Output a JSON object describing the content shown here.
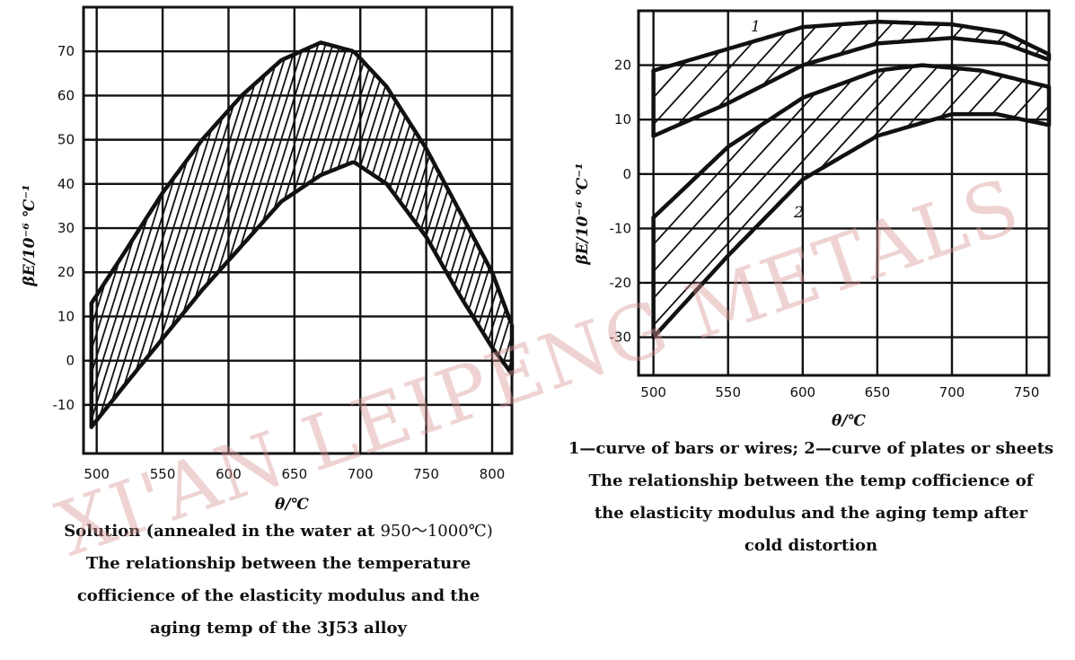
{
  "watermark": "XI'AN LEIPENG METALS",
  "chart_data": [
    {
      "type": "area",
      "xlabel": "θ/℃",
      "ylabel": "βE/10⁻⁶ ℃⁻¹",
      "x_ticks": [
        500,
        550,
        600,
        650,
        700,
        750,
        800
      ],
      "y_ticks": [
        70,
        60,
        50,
        40,
        30,
        20,
        10,
        0,
        -10
      ],
      "xlim": [
        490,
        815
      ],
      "ylim": [
        -21,
        80
      ],
      "band": {
        "upper": [
          [
            496,
            13
          ],
          [
            520,
            24
          ],
          [
            550,
            38
          ],
          [
            580,
            50
          ],
          [
            610,
            60
          ],
          [
            640,
            68
          ],
          [
            670,
            72
          ],
          [
            695,
            70
          ],
          [
            720,
            62
          ],
          [
            750,
            48
          ],
          [
            775,
            34
          ],
          [
            800,
            20
          ],
          [
            815,
            8
          ]
        ],
        "lower": [
          [
            496,
            -15
          ],
          [
            520,
            -6
          ],
          [
            550,
            5
          ],
          [
            580,
            16
          ],
          [
            610,
            26
          ],
          [
            640,
            36
          ],
          [
            670,
            42
          ],
          [
            695,
            45
          ],
          [
            720,
            40
          ],
          [
            750,
            28
          ],
          [
            775,
            15
          ],
          [
            800,
            3
          ],
          [
            815,
            -3
          ]
        ]
      },
      "caption": {
        "line1_bold": "Solution (annealed in the water at ",
        "line1_range": "950～1000℃)",
        "line2": "The relationship between the temperature",
        "line3": "cofficience of the elasticity modulus and the",
        "line4": "aging temp of the 3J53 alloy"
      }
    },
    {
      "type": "area",
      "xlabel": "θ/℃",
      "ylabel": "βE/10⁻⁶ ℃⁻¹",
      "x_ticks": [
        500,
        550,
        600,
        650,
        700,
        750
      ],
      "y_ticks": [
        20,
        10,
        0,
        -10,
        -20,
        -30
      ],
      "xlim": [
        490,
        765
      ],
      "ylim": [
        -37,
        30
      ],
      "series": [
        {
          "name": "1",
          "upper": [
            [
              500,
              19
            ],
            [
              550,
              23
            ],
            [
              600,
              27
            ],
            [
              650,
              28
            ],
            [
              700,
              27.5
            ],
            [
              735,
              26
            ],
            [
              765,
              22
            ]
          ],
          "lower": [
            [
              500,
              7
            ],
            [
              550,
              13
            ],
            [
              600,
              20
            ],
            [
              650,
              24
            ],
            [
              700,
              25
            ],
            [
              735,
              24
            ],
            [
              765,
              21
            ]
          ]
        },
        {
          "name": "2",
          "upper": [
            [
              500,
              -8
            ],
            [
              550,
              5
            ],
            [
              600,
              14
            ],
            [
              650,
              19
            ],
            [
              680,
              20
            ],
            [
              720,
              19
            ],
            [
              765,
              16
            ]
          ],
          "lower": [
            [
              500,
              -30
            ],
            [
              550,
              -15
            ],
            [
              600,
              -1
            ],
            [
              650,
              7
            ],
            [
              700,
              11
            ],
            [
              730,
              11
            ],
            [
              765,
              9
            ]
          ]
        }
      ],
      "caption": {
        "line1": "1—curve of bars or wires; 2—curve of plates or sheets",
        "line2": "The relationship between the temp cofficience of",
        "line3": "the elasticity modulus and the aging temp after",
        "line4": "cold distortion"
      }
    }
  ]
}
